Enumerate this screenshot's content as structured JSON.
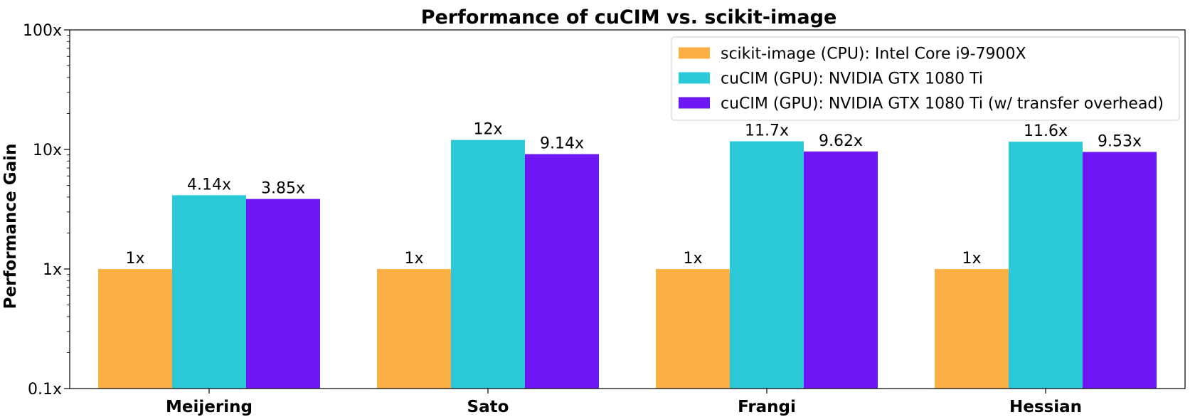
{
  "chart_data": {
    "type": "bar",
    "title": "Performance of cuCIM vs. scikit-image",
    "xlabel": "",
    "ylabel": "Performance Gain",
    "yscale": "log",
    "ylim": [
      0.1,
      100
    ],
    "yticks": [
      {
        "value": 0.1,
        "label": "0.1x"
      },
      {
        "value": 1,
        "label": "1x"
      },
      {
        "value": 10,
        "label": "10x"
      },
      {
        "value": 100,
        "label": "100x"
      }
    ],
    "categories": [
      "Meijering",
      "Sato",
      "Frangi",
      "Hessian"
    ],
    "series": [
      {
        "name": "scikit-image (CPU): Intel Core i9-7900X",
        "color": "#FBB045",
        "values": [
          1,
          1,
          1,
          1
        ],
        "labels": [
          "1x",
          "1x",
          "1x",
          "1x"
        ]
      },
      {
        "name": "cuCIM (GPU): NVIDIA GTX 1080 Ti",
        "color": "#2BC8D8",
        "values": [
          4.14,
          12,
          11.7,
          11.6
        ],
        "labels": [
          "4.14x",
          "12x",
          "11.7x",
          "11.6x"
        ]
      },
      {
        "name": "cuCIM (GPU): NVIDIA GTX 1080 Ti (w/ transfer overhead)",
        "color": "#6E18F6",
        "values": [
          3.85,
          9.14,
          9.62,
          9.53
        ],
        "labels": [
          "3.85x",
          "9.14x",
          "9.62x",
          "9.53x"
        ]
      }
    ],
    "legend_position": "top-right",
    "grid": false
  }
}
